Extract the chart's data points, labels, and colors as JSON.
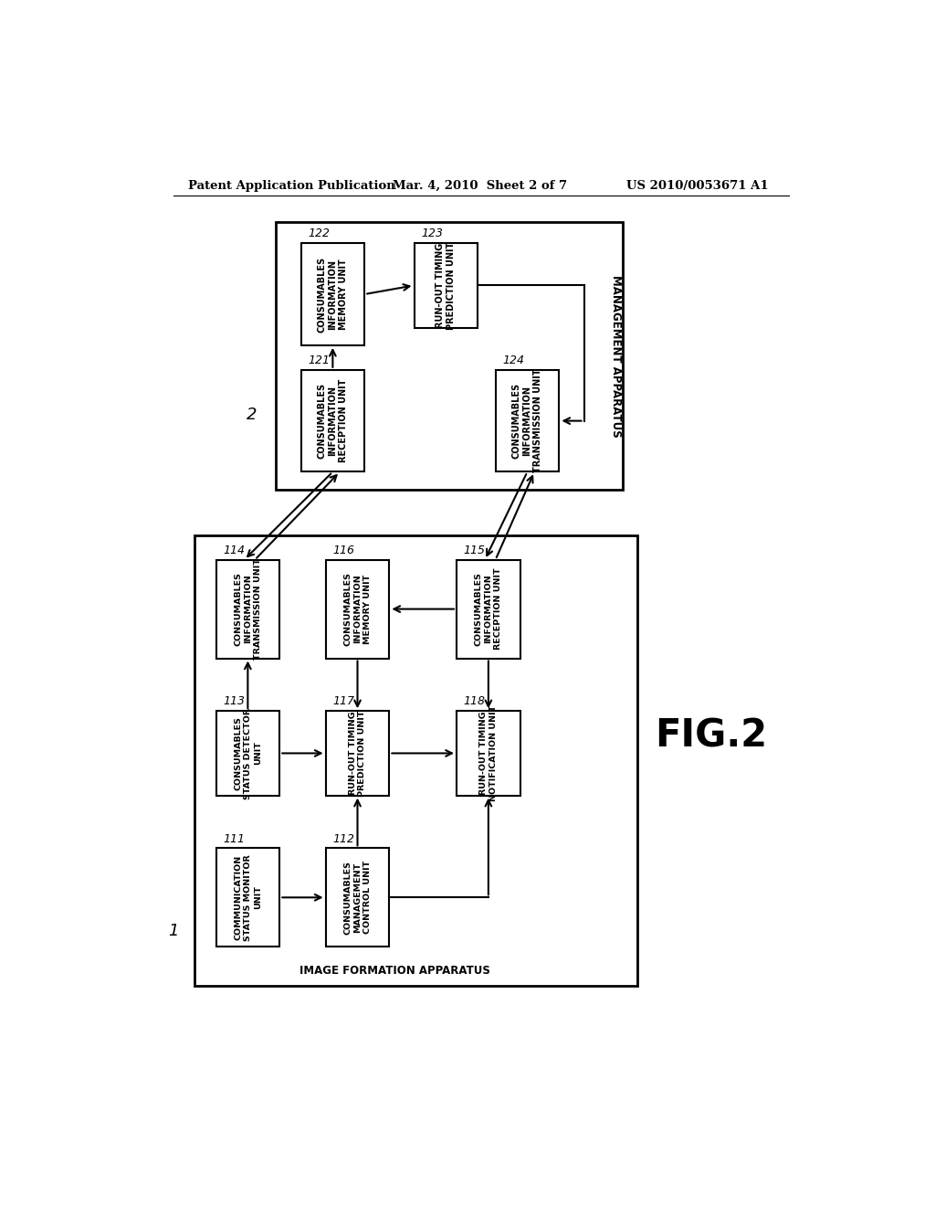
{
  "header_left": "Patent Application Publication",
  "header_mid": "Mar. 4, 2010  Sheet 2 of 7",
  "header_right": "US 2010/0053671 A1",
  "fig_label": "FIG.2",
  "bg_color": "#ffffff",
  "text_color": "#000000",
  "management_apparatus_label": "MANAGEMENT APPARATUS",
  "image_formation_label": "IMAGE FORMATION APPARATUS",
  "outer_label_2": "2",
  "outer_label_1": "1"
}
